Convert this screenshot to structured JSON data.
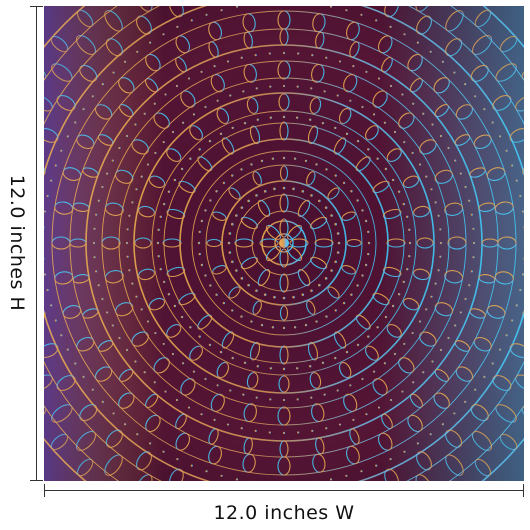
{
  "product": {
    "image_alt": "Mandala wall decal art",
    "colors": {
      "background": "#5a1532",
      "gold": "#e0a54a",
      "cyan": "#3fc6f0",
      "violet": "#5b4aa8"
    }
  },
  "dimensions": {
    "height_label": "12.0 inches H",
    "width_label": "12.0 inches W"
  }
}
